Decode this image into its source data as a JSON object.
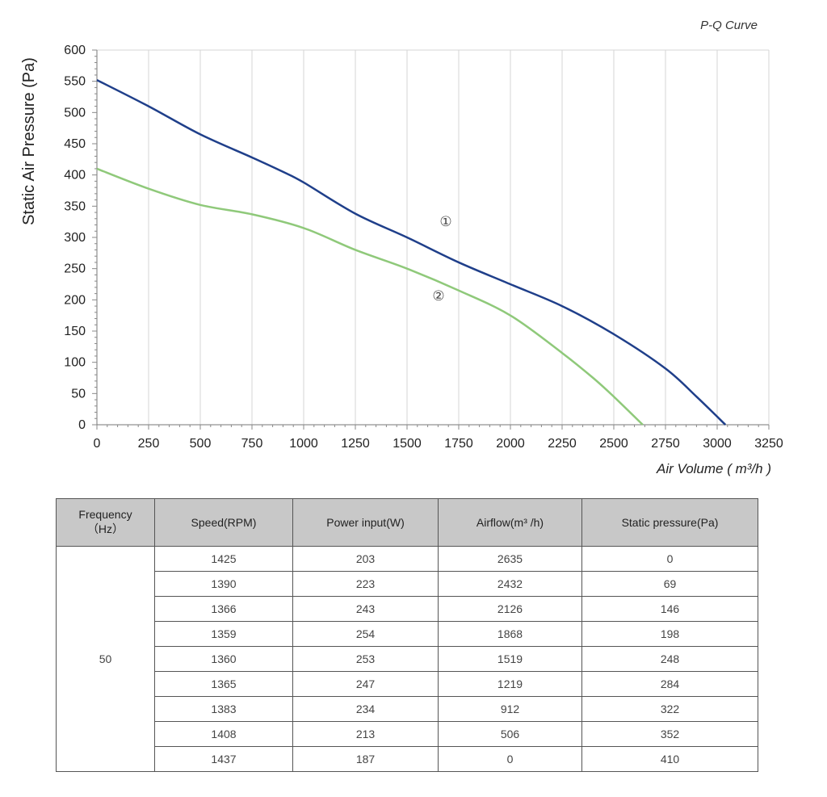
{
  "chart_data": {
    "type": "line",
    "title": "P-Q Curve",
    "xlabel": "Air Volume ( m³/h )",
    "ylabel": "Static Air Pressure  (Pa)",
    "xlim": [
      0,
      3250
    ],
    "ylim": [
      0,
      600
    ],
    "x_ticks": [
      0,
      250,
      500,
      750,
      1000,
      1250,
      1500,
      1750,
      2000,
      2250,
      2500,
      2750,
      3000,
      3250
    ],
    "y_ticks": [
      0,
      50,
      100,
      150,
      200,
      250,
      300,
      350,
      400,
      450,
      500,
      550,
      600
    ],
    "grid": "vertical",
    "series": [
      {
        "name": "①",
        "color": "#1f3f8a",
        "x": [
          0,
          250,
          500,
          750,
          900,
          1000,
          1250,
          1500,
          1750,
          2000,
          2250,
          2500,
          2750,
          2900,
          3040
        ],
        "y": [
          552,
          510,
          465,
          428,
          405,
          388,
          338,
          300,
          260,
          225,
          190,
          145,
          90,
          45,
          0
        ]
      },
      {
        "name": "②",
        "color": "#8fc97a",
        "x": [
          0,
          250,
          500,
          750,
          1000,
          1250,
          1500,
          1750,
          2000,
          2250,
          2400,
          2500,
          2640
        ],
        "y": [
          410,
          378,
          352,
          337,
          315,
          280,
          250,
          215,
          175,
          115,
          75,
          45,
          0
        ]
      }
    ]
  },
  "table": {
    "headers": {
      "frequency": "Frequency",
      "frequency_unit": "（Hz）",
      "speed": "Speed(RPM)",
      "power": "Power input(W)",
      "airflow": "Airflow(m³ /h)",
      "pressure": "Static pressure(Pa)"
    },
    "frequency_value": "50",
    "rows": [
      {
        "speed": "1425",
        "power": "203",
        "airflow": "2635",
        "pressure": "0"
      },
      {
        "speed": "1390",
        "power": "223",
        "airflow": "2432",
        "pressure": "69"
      },
      {
        "speed": "1366",
        "power": "243",
        "airflow": "2126",
        "pressure": "146"
      },
      {
        "speed": "1359",
        "power": "254",
        "airflow": "1868",
        "pressure": "198"
      },
      {
        "speed": "1360",
        "power": "253",
        "airflow": "1519",
        "pressure": "248"
      },
      {
        "speed": "1365",
        "power": "247",
        "airflow": "1219",
        "pressure": "284"
      },
      {
        "speed": "1383",
        "power": "234",
        "airflow": "912",
        "pressure": "322"
      },
      {
        "speed": "1408",
        "power": "213",
        "airflow": "506",
        "pressure": "352"
      },
      {
        "speed": "1437",
        "power": "187",
        "airflow": "0",
        "pressure": "410"
      }
    ]
  }
}
